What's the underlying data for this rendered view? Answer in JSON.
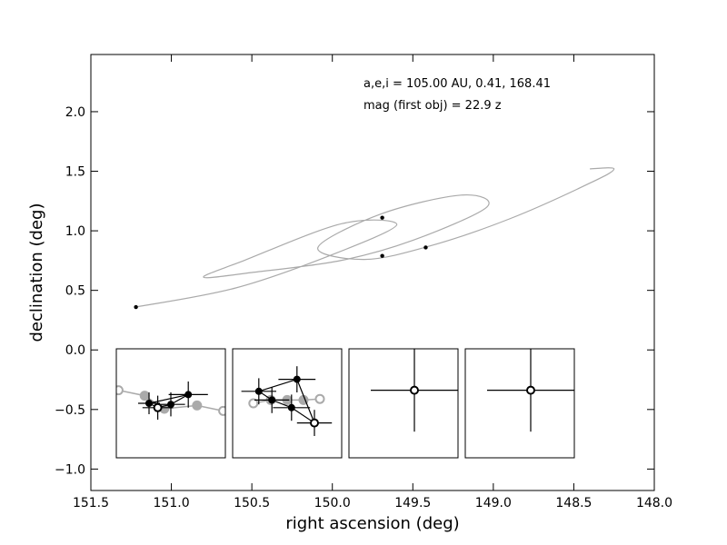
{
  "chart_data": {
    "type": "scatter",
    "xlabel": "right ascension (deg)",
    "ylabel": "declination (deg)",
    "xlim": [
      151.5,
      148.0
    ],
    "ylim": [
      -1.18,
      2.48
    ],
    "x_ticks": [
      "151.5",
      "151.0",
      "150.5",
      "150.0",
      "149.5",
      "149.0",
      "148.5",
      "148.0"
    ],
    "y_ticks": [
      "−1.0",
      "−0.5",
      "0.0",
      "0.5",
      "1.0",
      "1.5",
      "2.0"
    ],
    "annotations": [
      "a,e,i = 105.00 AU, 0.41, 168.41",
      "mag (first obj) =  22.9 z"
    ],
    "colors": {
      "orbit": "#aaaaaa",
      "detection": "#000000",
      "predicted": "#aaaaaa",
      "error_bar": "#000000"
    },
    "detections": [
      {
        "x": 151.22,
        "y": 0.36
      },
      {
        "x": 149.69,
        "y": 1.11
      },
      {
        "x": 149.69,
        "y": 0.79
      },
      {
        "x": 149.42,
        "y": 0.86
      }
    ],
    "orbit_track": [
      {
        "x": 151.22,
        "y": 0.36
      },
      {
        "x": 150.6,
        "y": 0.52
      },
      {
        "x": 150.0,
        "y": 0.8
      },
      {
        "x": 149.6,
        "y": 1.05
      },
      {
        "x": 149.94,
        "y": 1.06
      },
      {
        "x": 150.55,
        "y": 0.75
      },
      {
        "x": 150.8,
        "y": 0.61
      },
      {
        "x": 150.5,
        "y": 0.65
      },
      {
        "x": 149.95,
        "y": 0.75
      },
      {
        "x": 149.5,
        "y": 0.92
      },
      {
        "x": 149.04,
        "y": 1.2
      },
      {
        "x": 149.2,
        "y": 1.3
      },
      {
        "x": 149.7,
        "y": 1.14
      },
      {
        "x": 150.09,
        "y": 0.86
      },
      {
        "x": 149.8,
        "y": 0.76
      },
      {
        "x": 149.4,
        "y": 0.87
      },
      {
        "x": 148.9,
        "y": 1.1
      },
      {
        "x": 148.4,
        "y": 1.4
      },
      {
        "x": 148.25,
        "y": 1.52
      },
      {
        "x": 148.4,
        "y": 1.52
      }
    ],
    "insets": [
      {
        "predicted": [
          {
            "x": 0.02,
            "y": 0.38
          },
          {
            "x": 0.26,
            "y": 0.43
          },
          {
            "x": 0.44,
            "y": 0.55
          },
          {
            "x": 0.74,
            "y": 0.52
          },
          {
            "x": 0.98,
            "y": 0.57
          }
        ],
        "track": [
          {
            "x": 0.3,
            "y": 0.5
          },
          {
            "x": 0.38,
            "y": 0.54
          },
          {
            "x": 0.5,
            "y": 0.51
          },
          {
            "x": 0.66,
            "y": 0.42
          },
          {
            "x": 0.3,
            "y": 0.5
          }
        ],
        "observed": [
          {
            "x": 0.3,
            "y": 0.5,
            "xerr": 0.1,
            "yerr": 0.1,
            "open": false
          },
          {
            "x": 0.38,
            "y": 0.54,
            "xerr": 0.14,
            "yerr": 0.11,
            "open": true
          },
          {
            "x": 0.5,
            "y": 0.51,
            "xerr": 0.13,
            "yerr": 0.11,
            "open": false
          },
          {
            "x": 0.66,
            "y": 0.42,
            "xerr": 0.18,
            "yerr": 0.12,
            "open": false
          }
        ]
      },
      {
        "predicted": [
          {
            "x": 0.19,
            "y": 0.5
          },
          {
            "x": 0.35,
            "y": 0.47
          },
          {
            "x": 0.5,
            "y": 0.47
          },
          {
            "x": 0.65,
            "y": 0.47
          },
          {
            "x": 0.8,
            "y": 0.46
          }
        ],
        "track": [
          {
            "x": 0.24,
            "y": 0.39
          },
          {
            "x": 0.36,
            "y": 0.47
          },
          {
            "x": 0.54,
            "y": 0.54
          },
          {
            "x": 0.75,
            "y": 0.68
          },
          {
            "x": 0.59,
            "y": 0.28
          },
          {
            "x": 0.24,
            "y": 0.39
          }
        ],
        "observed": [
          {
            "x": 0.24,
            "y": 0.39,
            "xerr": 0.16,
            "yerr": 0.12,
            "open": false
          },
          {
            "x": 0.36,
            "y": 0.47,
            "xerr": 0.16,
            "yerr": 0.12,
            "open": false
          },
          {
            "x": 0.54,
            "y": 0.54,
            "xerr": 0.17,
            "yerr": 0.12,
            "open": false
          },
          {
            "x": 0.59,
            "y": 0.28,
            "xerr": 0.17,
            "yerr": 0.12,
            "open": false
          },
          {
            "x": 0.75,
            "y": 0.68,
            "xerr": 0.16,
            "yerr": 0.12,
            "open": true
          }
        ]
      },
      {
        "predicted": [],
        "track": [],
        "observed": [
          {
            "x": 0.6,
            "y": 0.38,
            "xerr": 0.4,
            "yerr": 0.38,
            "open": true
          }
        ]
      },
      {
        "predicted": [],
        "track": [],
        "observed": [
          {
            "x": 0.6,
            "y": 0.38,
            "xerr": 0.4,
            "yerr": 0.38,
            "open": true
          }
        ]
      }
    ]
  }
}
